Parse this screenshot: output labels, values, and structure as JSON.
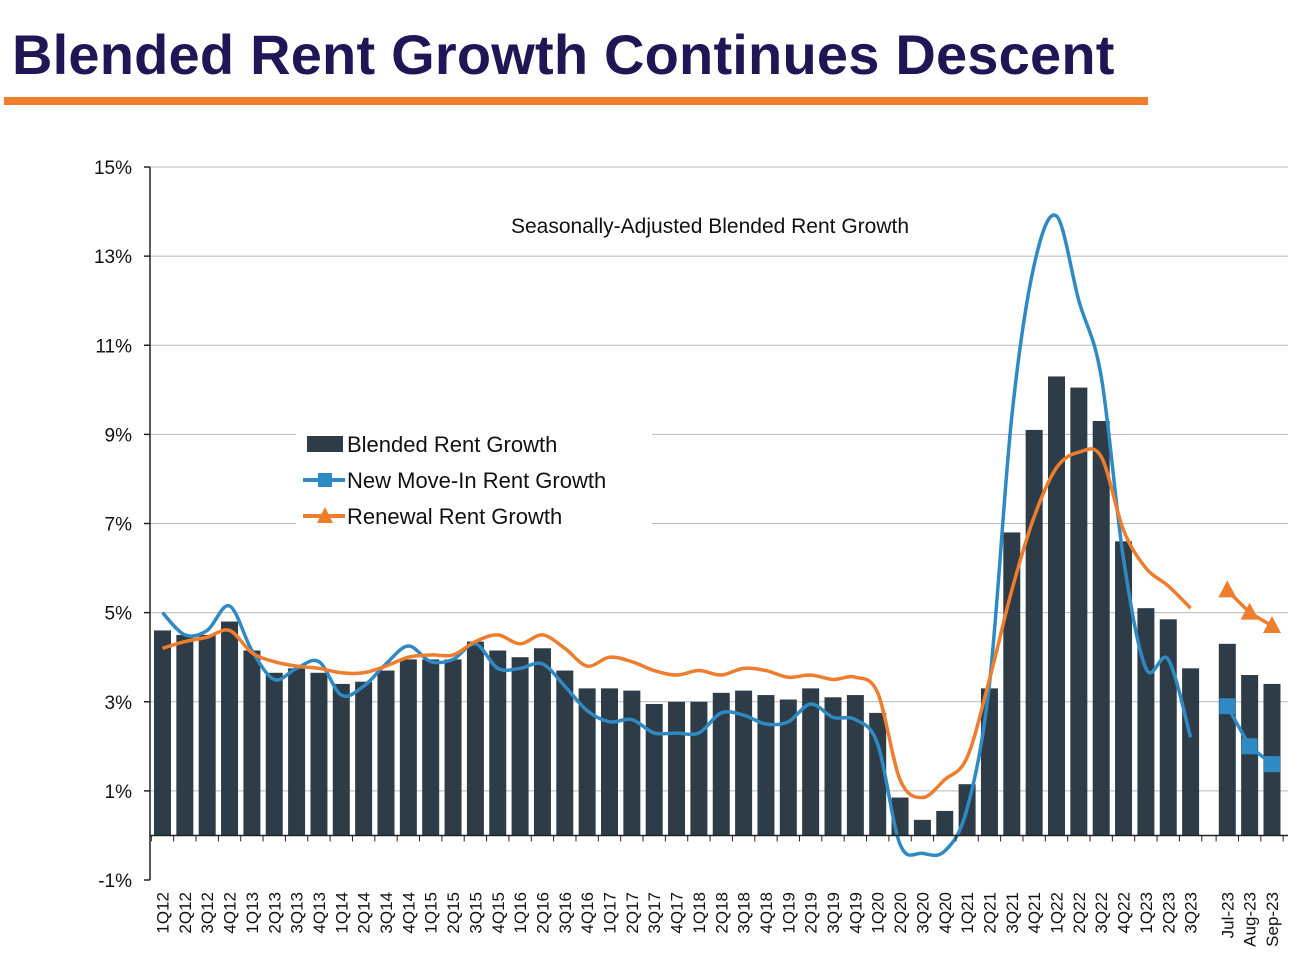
{
  "title": "Blended Rent Growth Continues Descent",
  "colors": {
    "title": "#1f1656",
    "accent_rule": "#ef7d2e",
    "bar": "#2d3c47",
    "new_move_in": "#2f8ac4",
    "renewal": "#ef7d2e",
    "grid": "#b8b8b8"
  },
  "chart_data": {
    "type": "bar",
    "annotation": "Seasonally-Adjusted Blended Rent Growth",
    "ylim": [
      -1,
      15
    ],
    "yticks": [
      -1,
      1,
      3,
      5,
      7,
      9,
      11,
      13,
      15
    ],
    "ytick_labels": [
      "-1%",
      "1%",
      "3%",
      "5%",
      "7%",
      "9%",
      "11%",
      "13%",
      "15%"
    ],
    "legend": {
      "position": "center-left",
      "entries": [
        "Blended Rent Growth",
        "New Move-In Rent Growth",
        "Renewal Rent Growth"
      ]
    },
    "quarterly": {
      "categories": [
        "1Q12",
        "2Q12",
        "3Q12",
        "4Q12",
        "1Q13",
        "2Q13",
        "3Q13",
        "4Q13",
        "1Q14",
        "2Q14",
        "3Q14",
        "4Q14",
        "1Q15",
        "2Q15",
        "3Q15",
        "4Q15",
        "1Q16",
        "2Q16",
        "3Q16",
        "4Q16",
        "1Q17",
        "2Q17",
        "3Q17",
        "4Q17",
        "1Q18",
        "2Q18",
        "3Q18",
        "4Q18",
        "1Q19",
        "2Q19",
        "3Q19",
        "4Q19",
        "1Q20",
        "2Q20",
        "3Q20",
        "4Q20",
        "1Q21",
        "2Q21",
        "3Q21",
        "4Q21",
        "1Q22",
        "2Q22",
        "3Q22",
        "4Q22",
        "1Q23",
        "2Q23",
        "3Q23"
      ],
      "series": [
        {
          "name": "Blended Rent Growth",
          "values": [
            4.6,
            4.5,
            4.5,
            4.8,
            4.15,
            3.65,
            3.75,
            3.65,
            3.4,
            3.45,
            3.7,
            3.95,
            3.95,
            3.95,
            4.35,
            4.15,
            4.0,
            4.2,
            3.7,
            3.3,
            3.3,
            3.25,
            2.95,
            3.0,
            3.0,
            3.2,
            3.25,
            3.15,
            3.05,
            3.3,
            3.1,
            3.15,
            2.75,
            0.85,
            0.35,
            0.55,
            1.15,
            3.3,
            6.8,
            9.1,
            10.3,
            10.05,
            9.3,
            6.6,
            5.1,
            4.85,
            3.75
          ]
        },
        {
          "name": "New Move-In Rent Growth",
          "values": [
            5.0,
            4.5,
            4.6,
            5.15,
            4.15,
            3.5,
            3.75,
            3.9,
            3.15,
            3.35,
            3.85,
            4.25,
            3.9,
            3.95,
            4.3,
            3.75,
            3.75,
            3.85,
            3.35,
            2.8,
            2.55,
            2.6,
            2.3,
            2.3,
            2.3,
            2.75,
            2.7,
            2.5,
            2.55,
            2.95,
            2.65,
            2.6,
            2.05,
            -0.2,
            -0.4,
            -0.35,
            0.6,
            3.4,
            9.4,
            12.8,
            13.9,
            12.0,
            10.3,
            6.2,
            3.75,
            3.95,
            2.2
          ]
        },
        {
          "name": "Renewal Rent Growth",
          "values": [
            4.2,
            4.35,
            4.45,
            4.6,
            4.1,
            3.9,
            3.8,
            3.75,
            3.65,
            3.65,
            3.8,
            4.0,
            4.05,
            4.05,
            4.35,
            4.5,
            4.3,
            4.5,
            4.2,
            3.8,
            4.0,
            3.9,
            3.7,
            3.6,
            3.7,
            3.6,
            3.75,
            3.7,
            3.55,
            3.6,
            3.5,
            3.55,
            3.2,
            1.25,
            0.85,
            1.25,
            1.75,
            3.5,
            5.5,
            7.15,
            8.25,
            8.6,
            8.5,
            6.85,
            6.0,
            5.6,
            5.1
          ]
        }
      ]
    },
    "monthly": {
      "categories": [
        "Jul-23",
        "Aug-23",
        "Sep-23"
      ],
      "series": [
        {
          "name": "Blended Rent Growth",
          "values": [
            4.3,
            3.6,
            3.4
          ]
        },
        {
          "name": "New Move-In Rent Growth",
          "values": [
            2.9,
            2.0,
            1.6
          ]
        },
        {
          "name": "Renewal Rent Growth",
          "values": [
            5.5,
            5.0,
            4.7
          ]
        }
      ]
    }
  }
}
